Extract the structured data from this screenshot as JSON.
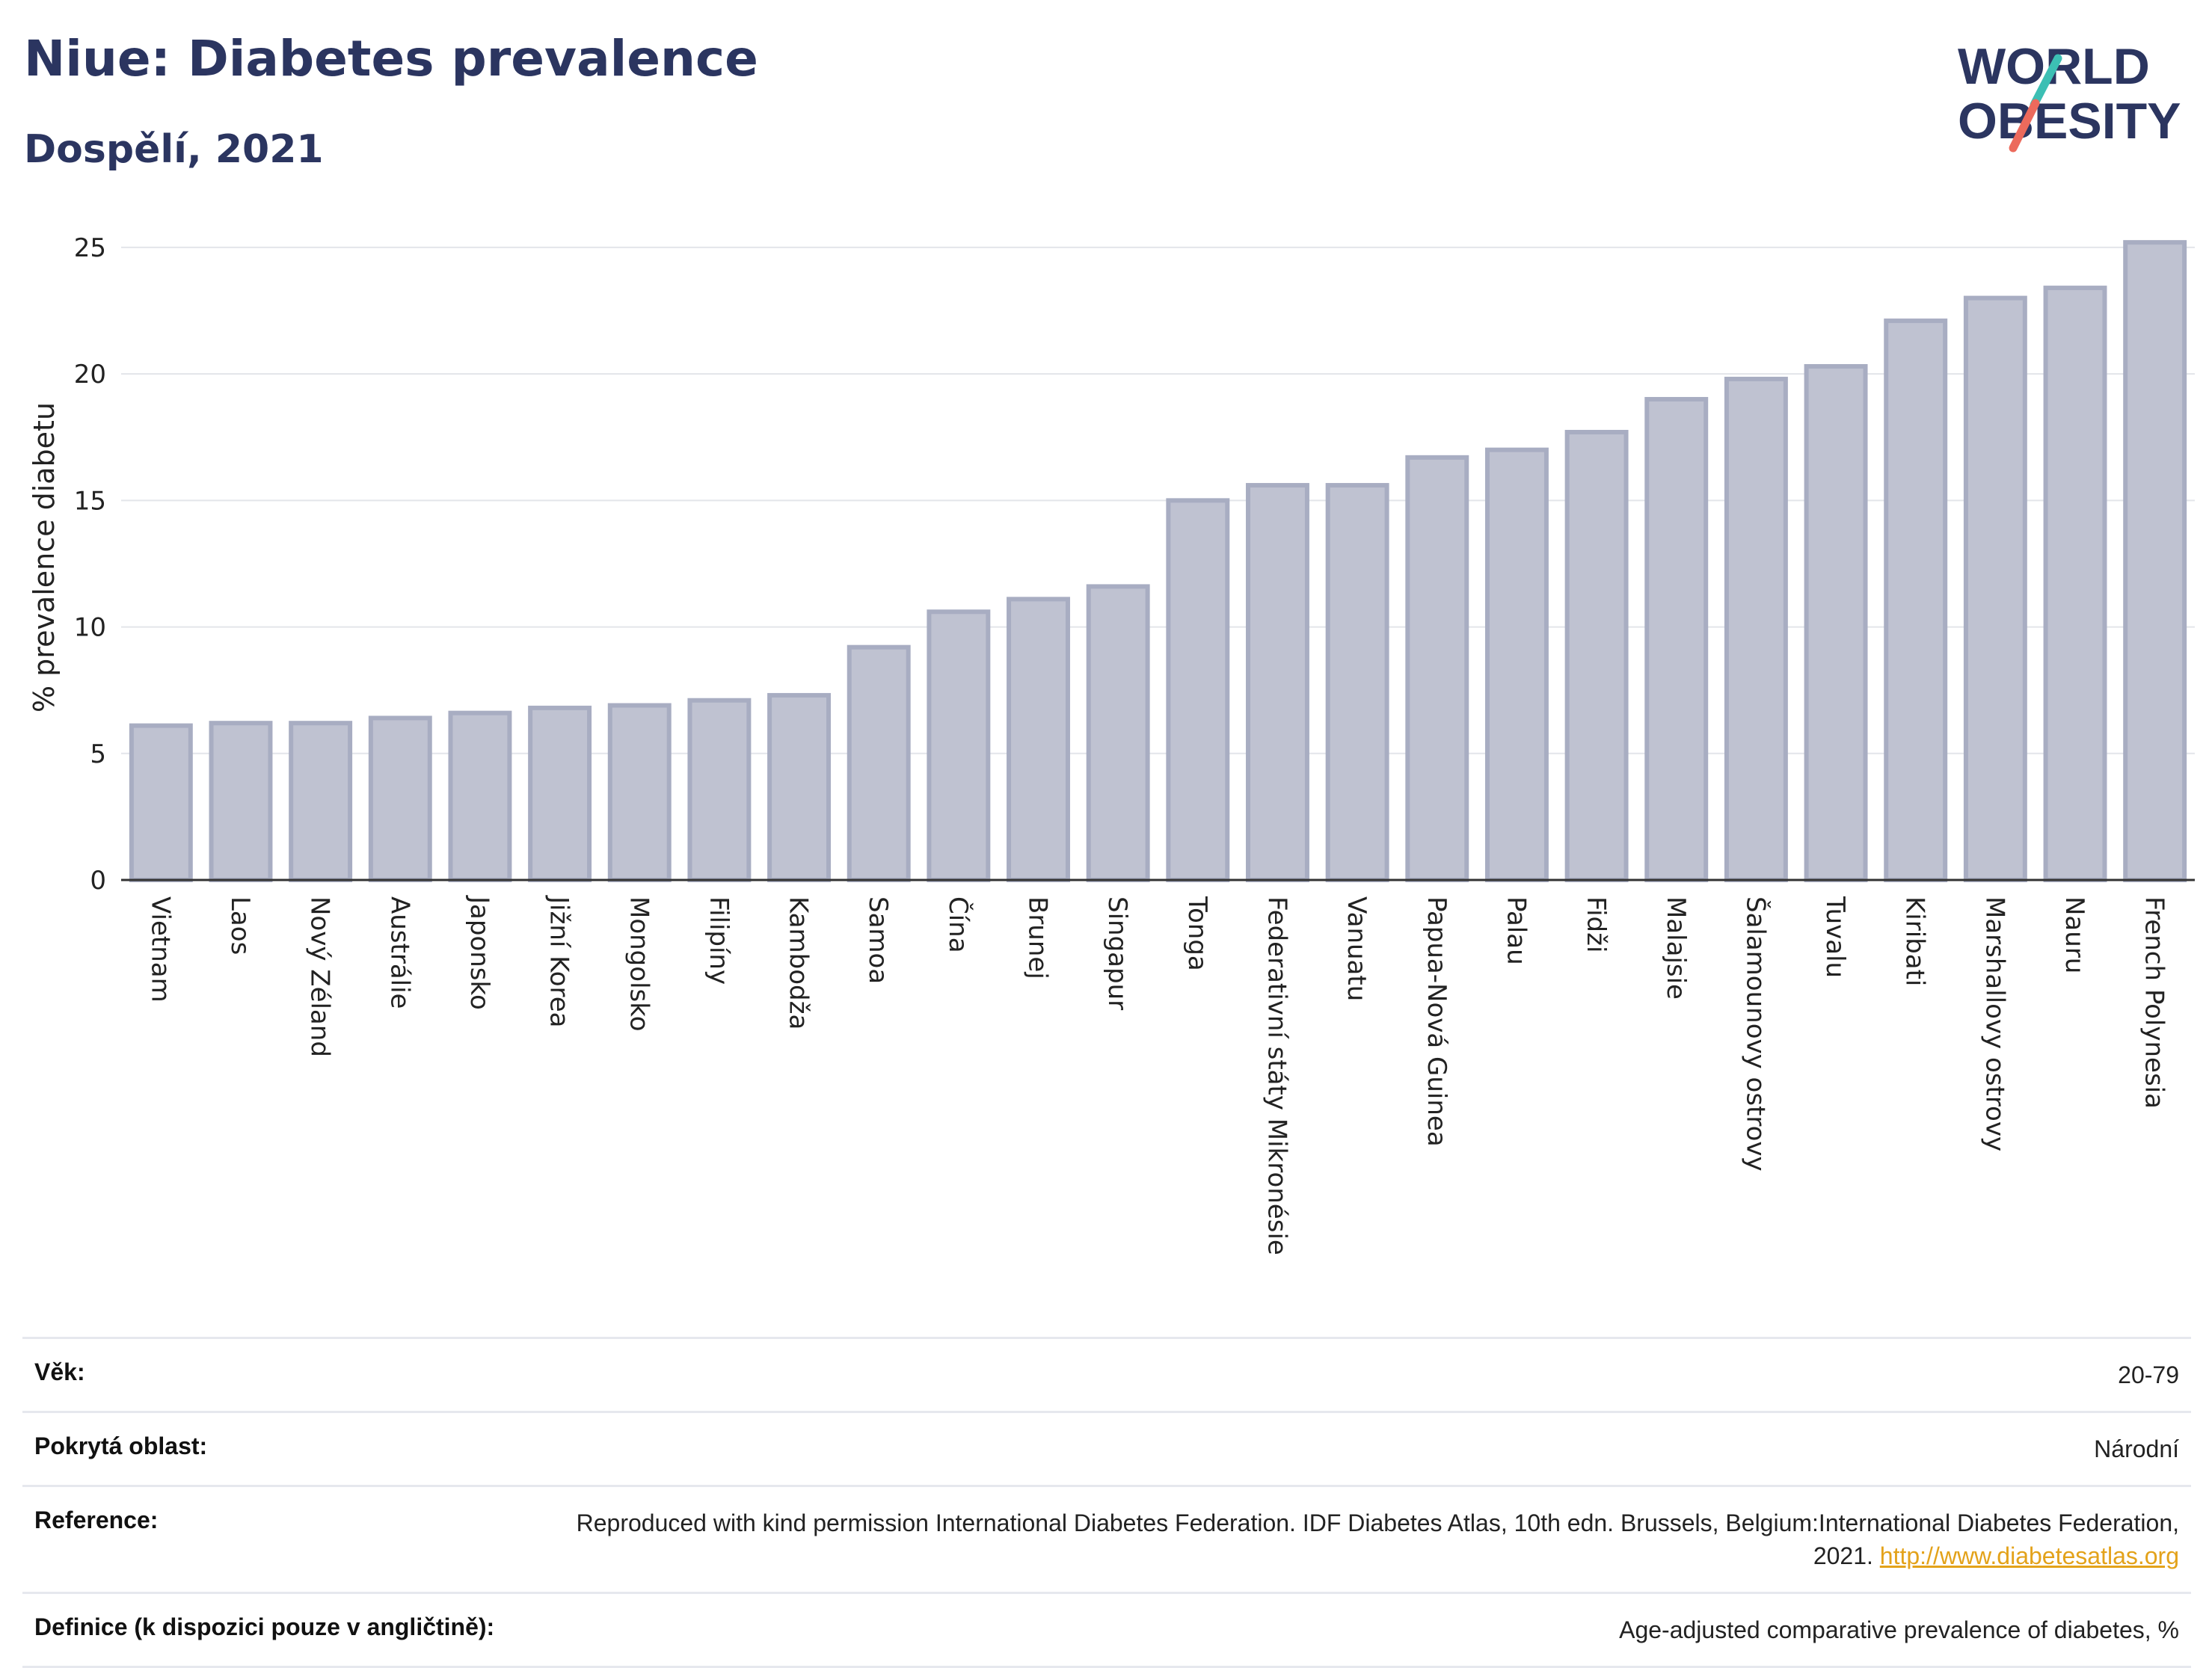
{
  "header": {
    "title": "Niue: Diabetes prevalence",
    "subtitle": "Dospělí, 2021"
  },
  "logo": {
    "line1": "WORLD",
    "line2": "OBESITY",
    "colors": {
      "text": "#2b3560",
      "slash_top": "#3cbfb4",
      "slash_bottom": "#ec6a5c"
    }
  },
  "chart_data": {
    "type": "bar",
    "ylabel": "% prevalence diabetu",
    "xlabel": "",
    "ylim": [
      0,
      25.5
    ],
    "yticks": [
      0,
      5,
      10,
      15,
      20,
      25
    ],
    "grid": true,
    "bar_fill": "#bfc2d1",
    "bar_stroke": "#a8adc2",
    "categories": [
      "Vietnam",
      "Laos",
      "Nový Zéland",
      "Austrálie",
      "Japonsko",
      "Jižní Korea",
      "Mongolsko",
      "Filipíny",
      "Kambodža",
      "Samoa",
      "Čína",
      "Brunej",
      "Singapur",
      "Tonga",
      "Federativní státy Mikronésie",
      "Vanuatu",
      "Papua-Nová Guinea",
      "Palau",
      "Fidži",
      "Malajsie",
      "Šalamounovy ostrovy",
      "Tuvalu",
      "Kiribati",
      "Marshallovy ostrovy",
      "Nauru",
      "French Polynesia"
    ],
    "values": [
      6.1,
      6.2,
      6.2,
      6.4,
      6.6,
      6.8,
      6.9,
      7.1,
      7.3,
      9.2,
      10.6,
      11.1,
      11.6,
      15.0,
      15.6,
      15.6,
      16.7,
      17.0,
      17.7,
      19.0,
      19.8,
      20.3,
      22.1,
      23.0,
      23.4,
      25.2
    ]
  },
  "meta": [
    {
      "label": "Věk:",
      "value": "20-79"
    },
    {
      "label": "Pokrytá oblast:",
      "value": "Národní"
    },
    {
      "label": "Reference:",
      "value": "Reproduced with kind permission International Diabetes Federation.  IDF Diabetes Atlas, 10th edn. Brussels, Belgium:International Diabetes Federation, 2021. ",
      "link": "http://www.diabetesatlas.org"
    },
    {
      "label": "Definice (k dispozici pouze v angličtině):",
      "value": "Age-adjusted comparative prevalence of diabetes, %"
    }
  ]
}
